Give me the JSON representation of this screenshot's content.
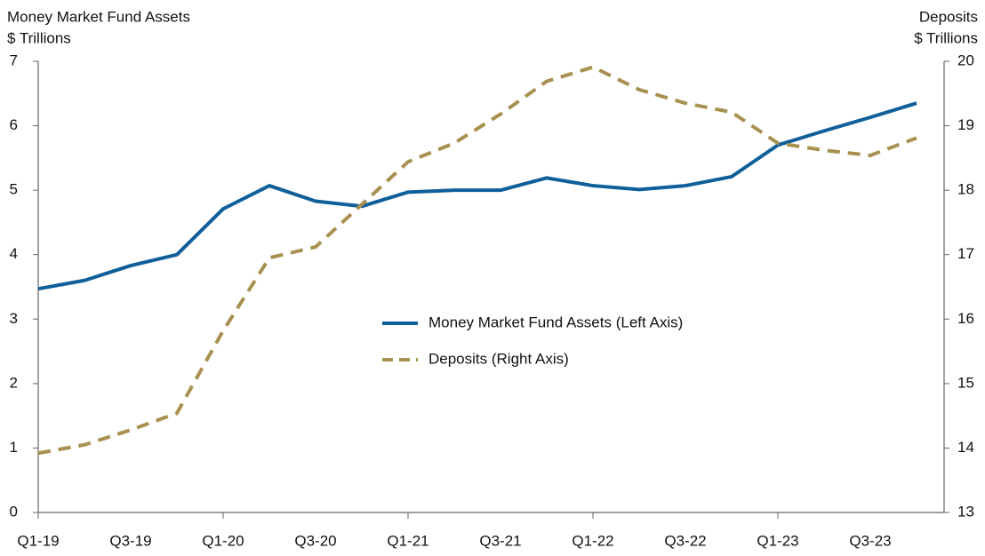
{
  "chart_data": {
    "type": "line",
    "ylabel": [
      "Money Market Fund Assets",
      "$ Trillions"
    ],
    "y2label": [
      "Deposits",
      "$ Trillions"
    ],
    "categories": [
      "Q1-19",
      null,
      "Q3-19",
      null,
      "Q1-20",
      null,
      "Q3-20",
      null,
      "Q1-21",
      null,
      "Q3-21",
      null,
      "Q1-22",
      null,
      "Q3-22",
      null,
      "Q1-23",
      null,
      "Q3-23",
      null
    ],
    "series": [
      {
        "name": "Money Market Fund Assets (Left Axis)",
        "color": "#0f5f9a",
        "dashed": false,
        "values": [
          3.47,
          3.6,
          3.83,
          4.0,
          4.71,
          5.07,
          4.83,
          4.75,
          4.97,
          5.0,
          5.0,
          5.19,
          5.07,
          5.01,
          5.07,
          5.21,
          5.7,
          5.92,
          6.13,
          6.35
        ]
      },
      {
        "name": "Deposits (Right Axis)",
        "color": "#a89150",
        "dashed": true,
        "axis": "y2",
        "values": [
          13.92,
          14.05,
          14.28,
          14.54,
          15.82,
          16.95,
          17.12,
          17.78,
          18.44,
          18.73,
          19.18,
          19.69,
          19.91,
          19.56,
          19.35,
          19.21,
          18.73,
          18.62,
          18.54,
          18.81
        ]
      }
    ],
    "ylim": [
      0,
      7
    ],
    "yticks": [
      0,
      1,
      2,
      3,
      4,
      5,
      6,
      7
    ],
    "y2lim": [
      13,
      20
    ],
    "y2ticks": [
      13,
      14,
      15,
      16,
      17,
      18,
      19,
      20
    ],
    "grid": false
  }
}
